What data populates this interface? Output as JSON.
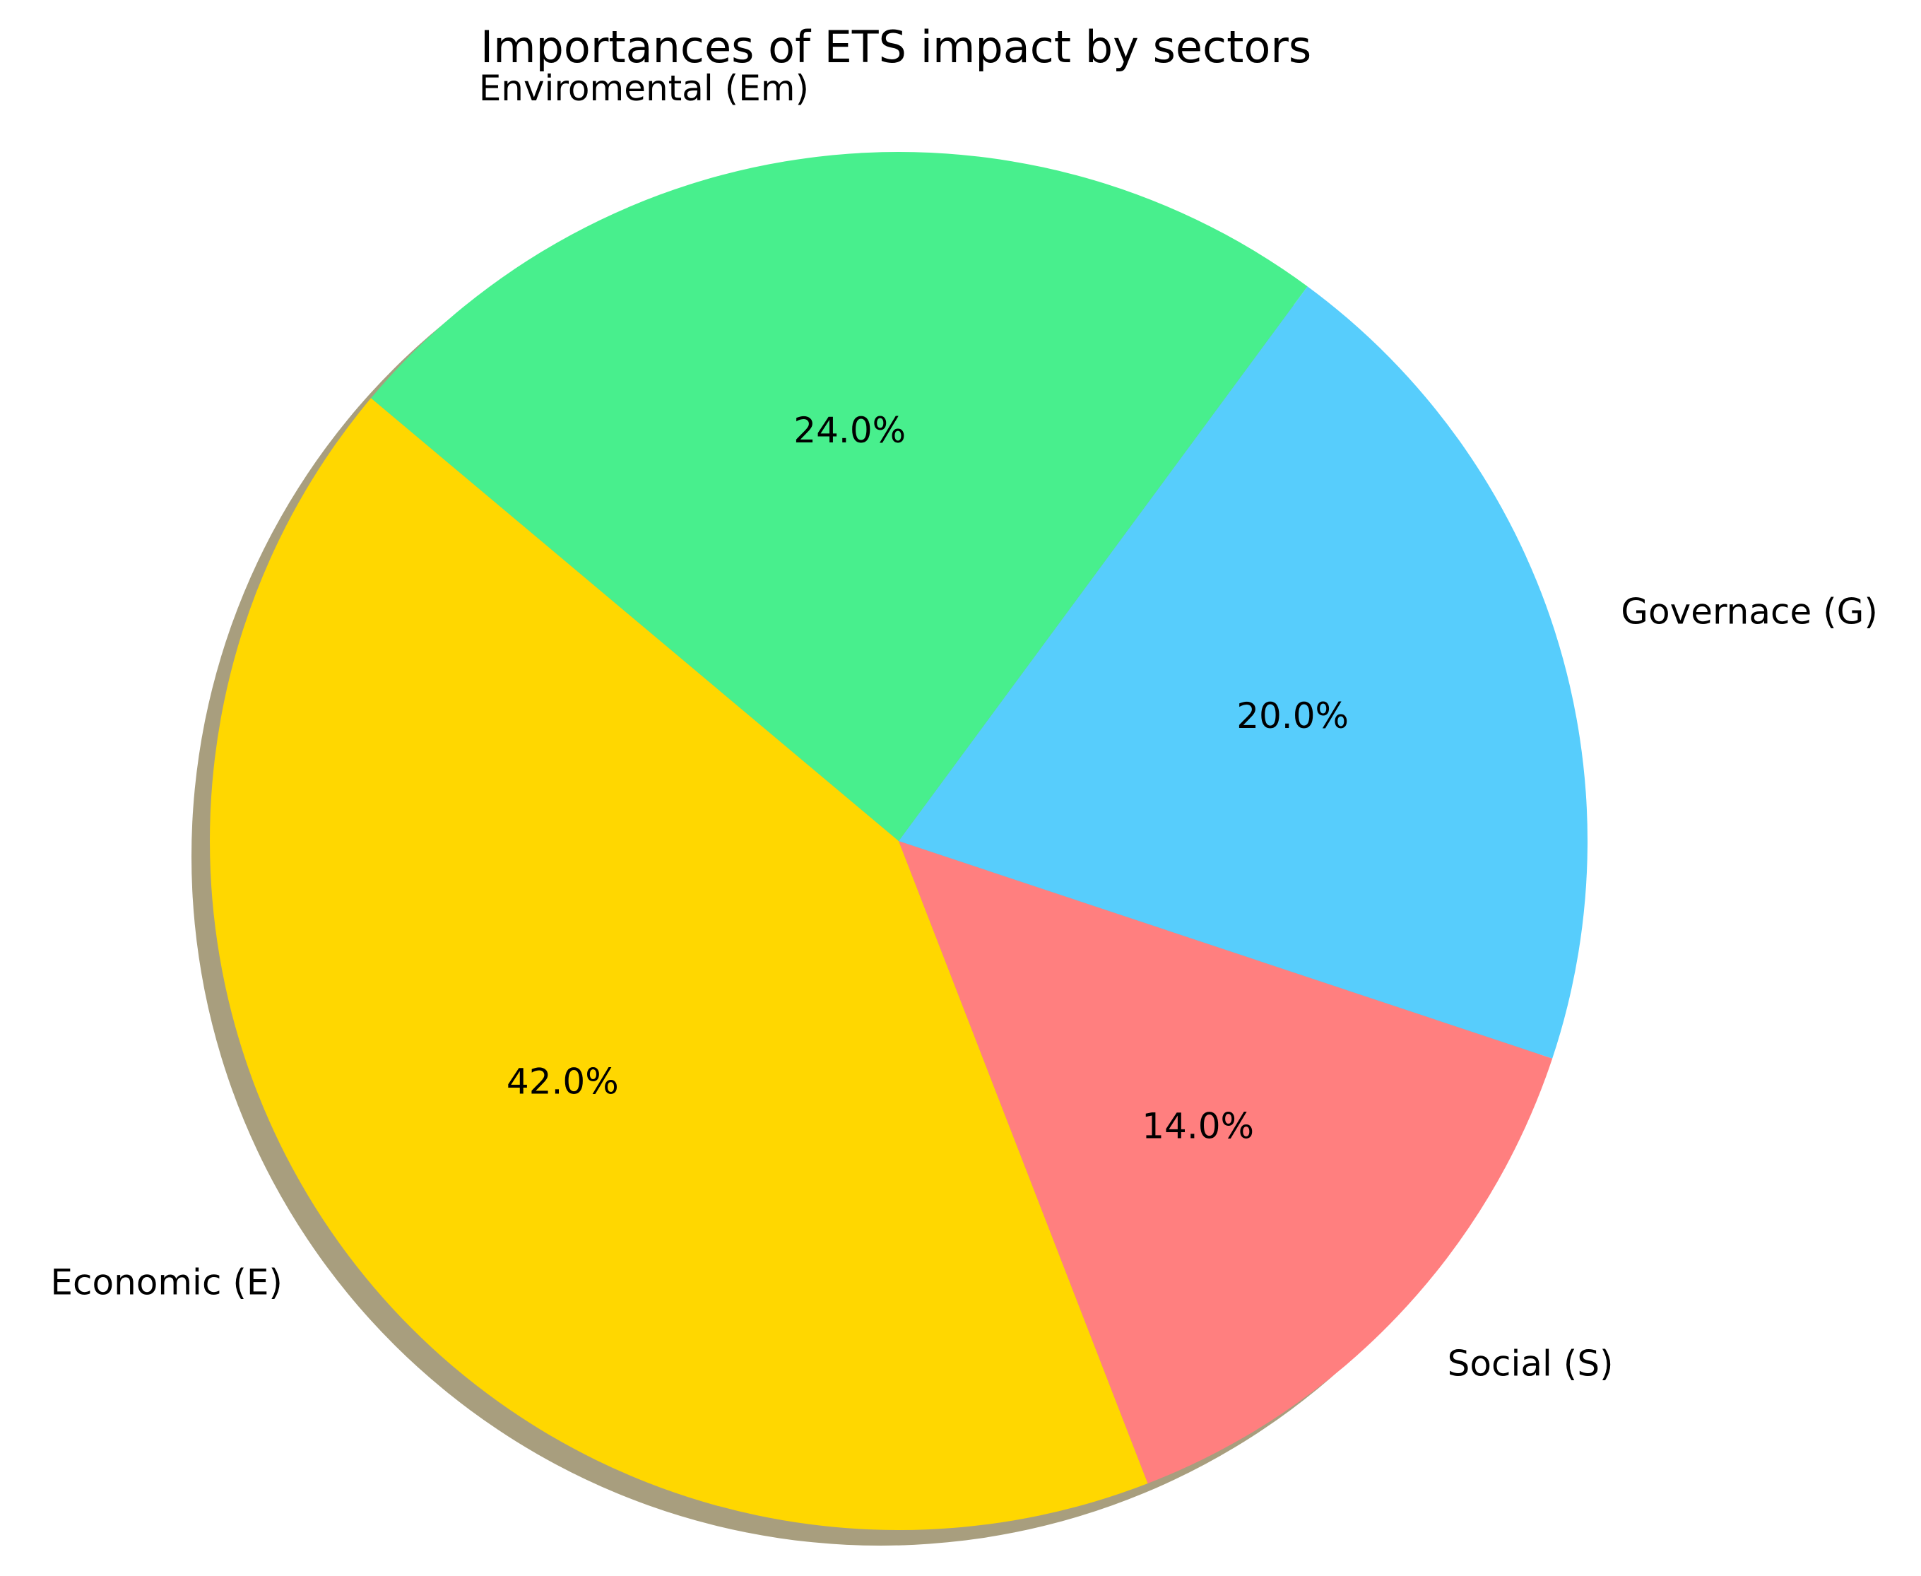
{
  "chart_data": {
    "type": "pie",
    "title": "Importances of ETS impact by sectors",
    "labels": [
      "Economic (E)",
      "Social (S)",
      "Governace (G)",
      "Enviromental (Em)"
    ],
    "values": [
      42.0,
      14.0,
      20.0,
      24.0
    ],
    "value_labels": [
      "42.0%",
      "14.0%",
      "20.0%",
      "24.0%"
    ],
    "colors": [
      "#FFD700",
      "#FF7F7F",
      "#57CDFC",
      "#48EF8D"
    ],
    "shadow_color": "#A89E7E",
    "start_angle_deg": 140,
    "direction": "counterclockwise",
    "shadow": true
  }
}
